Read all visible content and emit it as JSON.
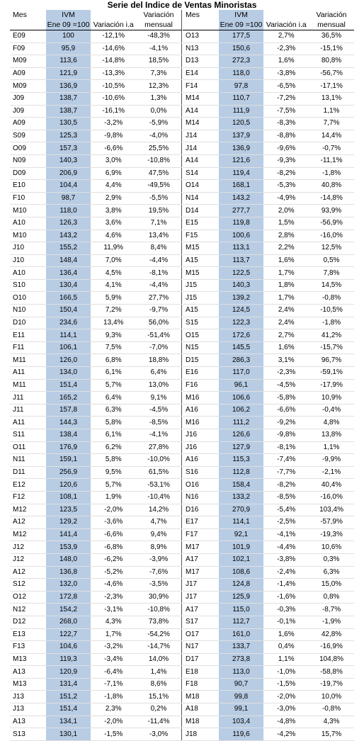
{
  "title": "Serie del Indice de Ventas Minoristas",
  "headers": {
    "mes": "Mes",
    "ivm": "IVM",
    "ivm_base": "Ene 09 =100",
    "variacion": "Variación",
    "variacion_ia": "Variación i.a",
    "mensual": "mensual"
  },
  "left_rows": [
    [
      "E09",
      "100",
      "-12,1%",
      "-48,3%"
    ],
    [
      "F09",
      "95,9",
      "-14,6%",
      "-4,1%"
    ],
    [
      "M09",
      "113,6",
      "-14,8%",
      "18,5%"
    ],
    [
      "A09",
      "121,9",
      "-13,3%",
      "7,3%"
    ],
    [
      "M09",
      "136,9",
      "-10,5%",
      "12,3%"
    ],
    [
      "J09",
      "138,7",
      "-10,6%",
      "1,3%"
    ],
    [
      "J09",
      "138,7",
      "-16,1%",
      "0,0%"
    ],
    [
      "A09",
      "130,5",
      "-3,2%",
      "-5,9%"
    ],
    [
      "S09",
      "125,3",
      "-9,8%",
      "-4,0%"
    ],
    [
      "O09",
      "157,3",
      "-6,6%",
      "25,5%"
    ],
    [
      "N09",
      "140,3",
      "3,0%",
      "-10,8%"
    ],
    [
      "D09",
      "206,9",
      "6,9%",
      "47,5%"
    ],
    [
      "E10",
      "104,4",
      "4,4%",
      "-49,5%"
    ],
    [
      "F10",
      "98,7",
      "2,9%",
      "-5,5%"
    ],
    [
      "M10",
      "118,0",
      "3,8%",
      "19,5%"
    ],
    [
      "A10",
      "126,3",
      "3,6%",
      "7,1%"
    ],
    [
      "M10",
      "143,2",
      "4,6%",
      "13,4%"
    ],
    [
      "J10",
      "155,2",
      "11,9%",
      "8,4%"
    ],
    [
      "J10",
      "148,4",
      "7,0%",
      "-4,4%"
    ],
    [
      "A10",
      "136,4",
      "4,5%",
      "-8,1%"
    ],
    [
      "S10",
      "130,4",
      "4,1%",
      "-4,4%"
    ],
    [
      "O10",
      "166,5",
      "5,9%",
      "27,7%"
    ],
    [
      "N10",
      "150,4",
      "7,2%",
      "-9,7%"
    ],
    [
      "D10",
      "234,6",
      "13,4%",
      "56,0%"
    ],
    [
      "E11",
      "114,1",
      "9,3%",
      "-51,4%"
    ],
    [
      "F11",
      "106,1",
      "7,5%",
      "-7,0%"
    ],
    [
      "M11",
      "126,0",
      "6,8%",
      "18,8%"
    ],
    [
      "A11",
      "134,0",
      "6,1%",
      "6,4%"
    ],
    [
      "M11",
      "151,4",
      "5,7%",
      "13,0%"
    ],
    [
      "J11",
      "165,2",
      "6,4%",
      "9,1%"
    ],
    [
      "J11",
      "157,8",
      "6,3%",
      "-4,5%"
    ],
    [
      "A11",
      "144,3",
      "5,8%",
      "-8,5%"
    ],
    [
      "S11",
      "138,4",
      "6,1%",
      "-4,1%"
    ],
    [
      "O11",
      "176,9",
      "6,2%",
      "27,8%"
    ],
    [
      "N11",
      "159,1",
      "5,8%",
      "-10,0%"
    ],
    [
      "D11",
      "256,9",
      "9,5%",
      "61,5%"
    ],
    [
      "E12",
      "120,6",
      "5,7%",
      "-53,1%"
    ],
    [
      "F12",
      "108,1",
      "1,9%",
      "-10,4%"
    ],
    [
      "M12",
      "123,5",
      "-2,0%",
      "14,2%"
    ],
    [
      "A12",
      "129,2",
      "-3,6%",
      "4,7%"
    ],
    [
      "M12",
      "141,4",
      "-6,6%",
      "9,4%"
    ],
    [
      "J12",
      "153,9",
      "-6,8%",
      "8,9%"
    ],
    [
      "J12",
      "148,0",
      "-6,2%",
      "-3,9%"
    ],
    [
      "A12",
      "136,8",
      "-5,2%",
      "-7,6%"
    ],
    [
      "S12",
      "132,0",
      "-4,6%",
      "-3,5%"
    ],
    [
      "O12",
      "172,8",
      "-2,3%",
      "30,9%"
    ],
    [
      "N12",
      "154,2",
      "-3,1%",
      "-10,8%"
    ],
    [
      "D12",
      "268,0",
      "4,3%",
      "73,8%"
    ],
    [
      "E13",
      "122,7",
      "1,7%",
      "-54,2%"
    ],
    [
      "F13",
      "104,6",
      "-3,2%",
      "-14,7%"
    ],
    [
      "M13",
      "119,3",
      "-3,4%",
      "14,0%"
    ],
    [
      "A13",
      "120,9",
      "-6,4%",
      "1,4%"
    ],
    [
      "M13",
      "131,4",
      "-7,1%",
      "8,6%"
    ],
    [
      "J13",
      "151,2",
      "-1,8%",
      "15,1%"
    ],
    [
      "J13",
      "151,4",
      "2,3%",
      "0,2%"
    ],
    [
      "A13",
      "134,1",
      "-2,0%",
      "-11,4%"
    ],
    [
      "S13",
      "130,1",
      "-1,5%",
      "-3,0%"
    ]
  ],
  "right_rows": [
    [
      "O13",
      "177,5",
      "2,7%",
      "36,5%"
    ],
    [
      "N13",
      "150,6",
      "-2,3%",
      "-15,1%"
    ],
    [
      "D13",
      "272,3",
      "1,6%",
      "80,8%"
    ],
    [
      "E14",
      "118,0",
      "-3,8%",
      "-56,7%"
    ],
    [
      "F14",
      "97,8",
      "-6,5%",
      "-17,1%"
    ],
    [
      "M14",
      "110,7",
      "-7,2%",
      "13,1%"
    ],
    [
      "A14",
      "111,9",
      "-7,5%",
      "1,1%"
    ],
    [
      "M14",
      "120,5",
      "-8,3%",
      "7,7%"
    ],
    [
      "J14",
      "137,9",
      "-8,8%",
      "14,4%"
    ],
    [
      "J14",
      "136,9",
      "-9,6%",
      "-0,7%"
    ],
    [
      "A14",
      "121,6",
      "-9,3%",
      "-11,1%"
    ],
    [
      "S14",
      "119,4",
      "-8,2%",
      "-1,8%"
    ],
    [
      "O14",
      "168,1",
      "-5,3%",
      "40,8%"
    ],
    [
      "N14",
      "143,2",
      "-4,9%",
      "-14,8%"
    ],
    [
      "D14",
      "277,7",
      "2,0%",
      "93,9%"
    ],
    [
      "E15",
      "119,8",
      "1,5%",
      "-56,9%"
    ],
    [
      "F15",
      "100,6",
      "2,8%",
      "-16,0%"
    ],
    [
      "M15",
      "113,1",
      "2,2%",
      "12,5%"
    ],
    [
      "A15",
      "113,7",
      "1,6%",
      "0,5%"
    ],
    [
      "M15",
      "122,5",
      "1,7%",
      "7,8%"
    ],
    [
      "J15",
      "140,3",
      "1,8%",
      "14,5%"
    ],
    [
      "J15",
      "139,2",
      "1,7%",
      "-0,8%"
    ],
    [
      "A15",
      "124,5",
      "2,4%",
      "-10,5%"
    ],
    [
      "S15",
      "122,3",
      "2,4%",
      "-1,8%"
    ],
    [
      "O15",
      "172,6",
      "2,7%",
      "41,2%"
    ],
    [
      "N15",
      "145,5",
      "1,6%",
      "-15,7%"
    ],
    [
      "D15",
      "286,3",
      "3,1%",
      "96,7%"
    ],
    [
      "E16",
      "117,0",
      "-2,3%",
      "-59,1%"
    ],
    [
      "F16",
      "96,1",
      "-4,5%",
      "-17,9%"
    ],
    [
      "M16",
      "106,6",
      "-5,8%",
      "10,9%"
    ],
    [
      "A16",
      "106,2",
      "-6,6%",
      "-0,4%"
    ],
    [
      "M16",
      "111,2",
      "-9,2%",
      "4,8%"
    ],
    [
      "J16",
      "126,6",
      "-9,8%",
      "13,8%"
    ],
    [
      "J16",
      "127,9",
      "-8,1%",
      "1,1%"
    ],
    [
      "A16",
      "115,3",
      "-7,4%",
      "-9,9%"
    ],
    [
      "S16",
      "112,8",
      "-7,7%",
      "-2,1%"
    ],
    [
      "O16",
      "158,4",
      "-8,2%",
      "40,4%"
    ],
    [
      "N16",
      "133,2",
      "-8,5%",
      "-16,0%"
    ],
    [
      "D16",
      "270,9",
      "-5,4%",
      "103,4%"
    ],
    [
      "E17",
      "114,1",
      "-2,5%",
      "-57,9%"
    ],
    [
      "F17",
      "92,1",
      "-4,1%",
      "-19,3%"
    ],
    [
      "M17",
      "101,9",
      "-4,4%",
      "10,6%"
    ],
    [
      "A17",
      "102,1",
      "-3,8%",
      "0,3%"
    ],
    [
      "M17",
      "108,6",
      "-2,4%",
      "6,3%"
    ],
    [
      "J17",
      "124,8",
      "-1,4%",
      "15,0%"
    ],
    [
      "J17",
      "125,9",
      "-1,6%",
      "0,8%"
    ],
    [
      "A17",
      "115,0",
      "-0,3%",
      "-8,7%"
    ],
    [
      "S17",
      "112,7",
      "-0,1%",
      "-1,9%"
    ],
    [
      "O17",
      "161,0",
      "1,6%",
      "42,8%"
    ],
    [
      "N17",
      "133,7",
      "0,4%",
      "-16,9%"
    ],
    [
      "D17",
      "273,8",
      "1,1%",
      "104,8%"
    ],
    [
      "E18",
      "113,0",
      "-1,0%",
      "-58,8%"
    ],
    [
      "F18",
      "90,7",
      "-1,5%",
      "-19,7%"
    ],
    [
      "M18",
      "99,8",
      "-2,0%",
      "10,0%"
    ],
    [
      "A18",
      "99,1",
      "-3,0%",
      "-0,8%"
    ],
    [
      "M18",
      "103,4",
      "-4,8%",
      "4,3%"
    ],
    [
      "J18",
      "119,6",
      "-4,2%",
      "15,7%"
    ]
  ]
}
